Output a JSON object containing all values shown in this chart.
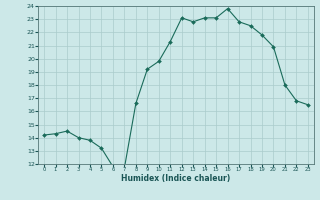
{
  "x": [
    0,
    1,
    2,
    3,
    4,
    5,
    6,
    7,
    8,
    9,
    10,
    11,
    12,
    13,
    14,
    15,
    16,
    17,
    18,
    19,
    20,
    21,
    22,
    23
  ],
  "y": [
    14.2,
    14.3,
    14.5,
    14.0,
    13.8,
    13.2,
    11.8,
    11.7,
    16.6,
    19.2,
    19.8,
    21.3,
    23.1,
    22.8,
    23.1,
    23.1,
    23.8,
    22.8,
    22.5,
    21.8,
    20.9,
    18.0,
    16.8,
    16.5
  ],
  "xlabel": "Humidex (Indice chaleur)",
  "ylim": [
    12,
    24
  ],
  "xlim": [
    -0.5,
    23.5
  ],
  "yticks": [
    12,
    13,
    14,
    15,
    16,
    17,
    18,
    19,
    20,
    21,
    22,
    23,
    24
  ],
  "xticks": [
    0,
    1,
    2,
    3,
    4,
    5,
    6,
    7,
    8,
    9,
    10,
    11,
    12,
    13,
    14,
    15,
    16,
    17,
    18,
    19,
    20,
    21,
    22,
    23
  ],
  "line_color": "#1a6b5a",
  "marker": "D",
  "marker_size": 2.0,
  "bg_color": "#cce8e8",
  "grid_color": "#aacccc",
  "spine_color": "#557777",
  "label_color": "#1a5555",
  "tick_color": "#1a5555"
}
